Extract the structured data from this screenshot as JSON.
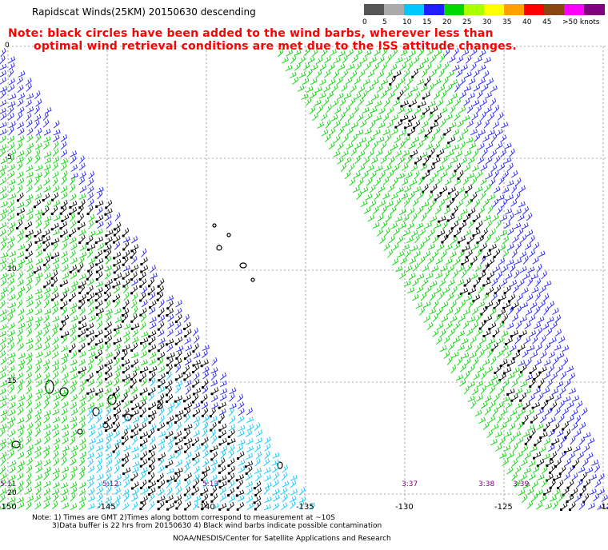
{
  "title": "Rapidscat Winds(25KM) 20150630 descending",
  "note_line1": "Note: black circles have been added to the wind barbs, wherever less than",
  "note_line2": "optimal wind retrieval conditions are met due to the ISS attitude changes.",
  "legend": {
    "labels": [
      "0",
      "5",
      "10",
      "15",
      "20",
      "25",
      "30",
      "35",
      "40",
      "45",
      ">50 knots"
    ],
    "colors": [
      "#555555",
      "#aaaaaa",
      "#00c8ff",
      "#1e1eff",
      "#00d700",
      "#aaff00",
      "#ffff00",
      "#ffa000",
      "#ff0000",
      "#8b4513",
      "#ff00ff",
      "#800080"
    ]
  },
  "longitude_labels": [
    "-150",
    "-145",
    "-140",
    "-135",
    "-130",
    "-125",
    "-12"
  ],
  "latitude_labels": [
    "0",
    "-5",
    "-10",
    "-15",
    "-20"
  ],
  "time_labels": [
    "5:11",
    "5:12",
    "5:13",
    "3:37",
    "3:38",
    "3:39"
  ],
  "footer_line1": "Note: 1) Times are GMT 2)Times along bottom correspond to measurement at ~10S",
  "footer_line2": "3)Data buffer is 22 hrs from 20150630 4) Black wind barbs indicate possible contamination",
  "footer_credit": "NOAA/NESDIS/Center for Satellite Applications and Research",
  "colors": {
    "high_wind": "#1e1eff",
    "mid_wind": "#00d700",
    "low_wind": "#00c8ff",
    "flagged": "#000000",
    "time_label": "#800080",
    "note": "#ff0000"
  }
}
